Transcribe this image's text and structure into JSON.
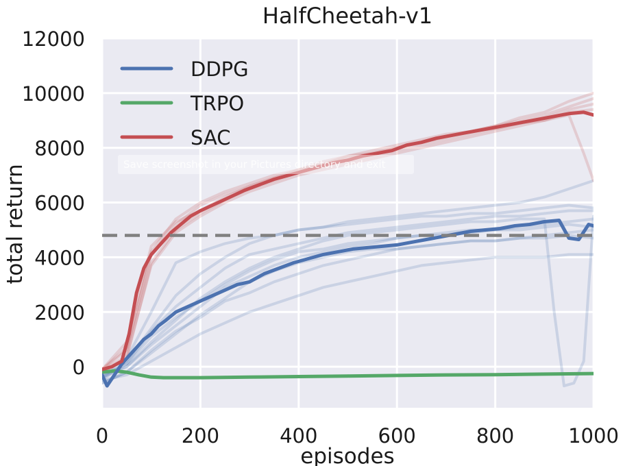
{
  "chart_data": {
    "type": "line",
    "title": "HalfCheetah-v1",
    "xlabel": "episodes",
    "ylabel": "total return",
    "xlim": [
      0,
      1000
    ],
    "ylim": [
      -1500,
      12000
    ],
    "xticks": [
      0,
      200,
      400,
      600,
      800,
      1000
    ],
    "yticks": [
      0,
      2000,
      4000,
      6000,
      8000,
      10000,
      12000
    ],
    "grid": true,
    "legend": "top-left",
    "reference_line": {
      "y": 4800,
      "color": "#808080",
      "style": "dashed"
    },
    "series": [
      {
        "name": "DDPG",
        "color": "#4c72b0",
        "x": [
          0,
          10,
          25,
          40,
          55,
          70,
          85,
          100,
          115,
          130,
          150,
          175,
          200,
          225,
          250,
          275,
          300,
          330,
          360,
          390,
          420,
          450,
          480,
          510,
          540,
          570,
          600,
          630,
          660,
          690,
          720,
          750,
          780,
          810,
          840,
          870,
          900,
          930,
          950,
          970,
          990,
          1000
        ],
        "values": [
          -300,
          -700,
          -300,
          100,
          400,
          700,
          1000,
          1200,
          1500,
          1700,
          2000,
          2200,
          2400,
          2600,
          2800,
          3000,
          3100,
          3400,
          3600,
          3800,
          3950,
          4100,
          4200,
          4300,
          4350,
          4400,
          4450,
          4550,
          4650,
          4750,
          4850,
          4950,
          5000,
          5050,
          5150,
          5200,
          5300,
          5350,
          4700,
          4650,
          5200,
          5150
        ],
        "runs": [
          {
            "x": [
              0,
              50,
              100,
              150,
              200,
              250,
              300,
              350,
              400,
              450,
              500,
              550,
              600,
              650,
              700,
              750,
              800,
              850,
              900,
              950,
              1000
            ],
            "values": [
              -500,
              200,
              1400,
              2600,
              3400,
              4000,
              4500,
              4800,
              5000,
              5100,
              5300,
              5400,
              5500,
              5600,
              5700,
              5800,
              5900,
              6000,
              6200,
              6500,
              6800
            ]
          },
          {
            "x": [
              0,
              50,
              100,
              150,
              200,
              250,
              300,
              350,
              400,
              450,
              500,
              550,
              600,
              650,
              700,
              750,
              800,
              850,
              900,
              950,
              1000
            ],
            "values": [
              -400,
              300,
              2000,
              3800,
              4200,
              4500,
              4700,
              4800,
              5000,
              5100,
              5200,
              5300,
              5400,
              5500,
              5500,
              5600,
              5600,
              5700,
              5800,
              5900,
              5800
            ]
          },
          {
            "x": [
              0,
              50,
              100,
              150,
              200,
              250,
              300,
              350,
              400,
              450,
              500,
              550,
              600,
              650,
              700,
              750,
              800,
              850,
              900,
              950,
              1000
            ],
            "values": [
              -300,
              0,
              800,
              1500,
              2200,
              2900,
              3300,
              3700,
              4000,
              4200,
              4400,
              4500,
              4700,
              4800,
              4900,
              5000,
              5000,
              5100,
              5200,
              5300,
              5400
            ]
          },
          {
            "x": [
              0,
              50,
              100,
              150,
              200,
              250,
              300,
              350,
              400,
              450,
              500,
              550,
              600,
              650,
              700,
              750,
              800,
              850,
              900,
              950,
              1000
            ],
            "values": [
              -600,
              -200,
              500,
              1200,
              1900,
              2500,
              3100,
              3500,
              3800,
              4000,
              4200,
              4300,
              4300,
              4400,
              4500,
              4600,
              4600,
              4700,
              4800,
              4900,
              5000
            ]
          },
          {
            "x": [
              0,
              50,
              100,
              150,
              200,
              250,
              300,
              350,
              400,
              450,
              500,
              550,
              600,
              650,
              700,
              750,
              800,
              850,
              900,
              950,
              1000
            ],
            "values": [
              -400,
              100,
              1100,
              1800,
              2400,
              3000,
              3500,
              3900,
              4200,
              4300,
              4500,
              4600,
              4700,
              4800,
              4800,
              4900,
              5000,
              5000,
              5100,
              5200,
              5100
            ]
          },
          {
            "x": [
              0,
              50,
              100,
              150,
              200,
              250,
              300,
              350,
              400,
              450,
              500,
              550,
              600,
              650,
              700,
              750,
              800,
              850,
              900,
              950,
              1000
            ],
            "values": [
              -500,
              -300,
              200,
              700,
              1200,
              1600,
              2000,
              2300,
              2600,
              2900,
              3100,
              3300,
              3500,
              3700,
              3800,
              3900,
              4000,
              4000,
              4000,
              4100,
              4100
            ]
          },
          {
            "x": [
              0,
              50,
              100,
              150,
              200,
              250,
              300,
              350,
              400,
              450,
              500,
              550,
              600,
              650,
              700,
              750,
              800,
              850,
              900,
              920,
              940,
              960,
              980,
              1000
            ],
            "values": [
              -400,
              0,
              900,
              1700,
              2500,
              3100,
              3600,
              4000,
              4300,
              4600,
              4800,
              4900,
              5000,
              5100,
              5200,
              5300,
              5300,
              5400,
              5400,
              2000,
              -700,
              -600,
              200,
              5500
            ]
          },
          {
            "x": [
              0,
              50,
              100,
              150,
              200,
              250,
              300,
              350,
              400,
              450,
              500,
              550,
              600,
              650,
              700,
              750,
              800,
              850,
              900,
              950,
              1000
            ],
            "values": [
              -300,
              100,
              1300,
              2200,
              2900,
              3600,
              4100,
              4300,
              4500,
              4700,
              4900,
              5000,
              5100,
              5200,
              5300,
              5400,
              5500,
              5500,
              5600,
              5700,
              5700
            ]
          },
          {
            "x": [
              0,
              50,
              100,
              150,
              200,
              250,
              300,
              350,
              400,
              450,
              500,
              550,
              600,
              650,
              700,
              750,
              800,
              850,
              900,
              950,
              1000
            ],
            "values": [
              -600,
              -200,
              600,
              1300,
              1800,
              2400,
              2700,
              3100,
              3400,
              3700,
              3900,
              4100,
              4300,
              4400,
              4500,
              4600,
              4600,
              4700,
              4700,
              4800,
              4700
            ]
          }
        ]
      },
      {
        "name": "TRPO",
        "color": "#55a868",
        "x": [
          0,
          25,
          50,
          75,
          100,
          125,
          150,
          200,
          300,
          400,
          500,
          600,
          700,
          800,
          900,
          1000
        ],
        "values": [
          -200,
          -150,
          -200,
          -300,
          -380,
          -400,
          -400,
          -400,
          -380,
          -360,
          -340,
          -320,
          -300,
          -290,
          -270,
          -250
        ]
      },
      {
        "name": "SAC",
        "color": "#c44e52",
        "x": [
          0,
          20,
          40,
          55,
          70,
          85,
          100,
          120,
          140,
          160,
          180,
          200,
          230,
          260,
          290,
          320,
          350,
          380,
          410,
          440,
          470,
          500,
          530,
          560,
          590,
          620,
          650,
          680,
          710,
          740,
          770,
          800,
          830,
          860,
          890,
          920,
          950,
          980,
          1000
        ],
        "values": [
          -100,
          0,
          200,
          1200,
          2700,
          3600,
          4100,
          4500,
          4900,
          5200,
          5500,
          5700,
          5950,
          6200,
          6450,
          6650,
          6850,
          7000,
          7150,
          7300,
          7450,
          7550,
          7700,
          7800,
          7900,
          8100,
          8200,
          8350,
          8450,
          8550,
          8650,
          8750,
          8850,
          8950,
          9050,
          9150,
          9250,
          9300,
          9200
        ],
        "runs": [
          {
            "x": [
              0,
              50,
              100,
              150,
              200,
              250,
              300,
              350,
              400,
              450,
              500,
              550,
              600,
              650,
              700,
              750,
              800,
              850,
              900,
              950,
              1000
            ],
            "values": [
              -100,
              600,
              4200,
              5400,
              6000,
              6400,
              6700,
              7000,
              7200,
              7400,
              7700,
              7900,
              8100,
              8300,
              8500,
              8600,
              8800,
              9000,
              9200,
              9500,
              9800
            ]
          },
          {
            "x": [
              0,
              50,
              100,
              150,
              200,
              250,
              300,
              350,
              400,
              450,
              500,
              550,
              600,
              650,
              700,
              750,
              800,
              850,
              900,
              950,
              1000
            ],
            "values": [
              -200,
              300,
              3800,
              5000,
              5600,
              6100,
              6500,
              6800,
              7100,
              7300,
              7500,
              7700,
              7900,
              8100,
              8300,
              8500,
              8700,
              8900,
              9100,
              9400,
              9600
            ]
          },
          {
            "x": [
              0,
              50,
              100,
              150,
              200,
              250,
              300,
              350,
              400,
              450,
              500,
              550,
              600,
              650,
              700,
              750,
              800,
              850,
              900,
              950,
              1000
            ],
            "values": [
              -100,
              900,
              4400,
              5300,
              5700,
              6200,
              6600,
              6900,
              7200,
              7500,
              7700,
              7800,
              8000,
              8200,
              8400,
              8600,
              8800,
              9100,
              9300,
              9700,
              10000
            ]
          },
          {
            "x": [
              0,
              50,
              100,
              150,
              200,
              250,
              300,
              350,
              400,
              450,
              500,
              550,
              600,
              650,
              700,
              750,
              800,
              850,
              900,
              950,
              980,
              1000
            ],
            "values": [
              -150,
              400,
              3700,
              4900,
              5500,
              6000,
              6400,
              6700,
              7000,
              7200,
              7400,
              7600,
              7800,
              8000,
              8200,
              8400,
              8600,
              8800,
              9000,
              9200,
              7800,
              6800
            ]
          },
          {
            "x": [
              0,
              50,
              100,
              150,
              200,
              250,
              300,
              350,
              400,
              450,
              500,
              550,
              600,
              650,
              700,
              750,
              800,
              850,
              900,
              950,
              1000
            ],
            "values": [
              -100,
              700,
              4100,
              5200,
              5900,
              6300,
              6600,
              6900,
              7100,
              7400,
              7600,
              7800,
              8000,
              8200,
              8400,
              8600,
              8700,
              8900,
              9000,
              9300,
              9400
            ]
          }
        ]
      }
    ]
  },
  "overlay": {
    "toast_text": "Save screenshot in your Pictures directory and exit"
  }
}
